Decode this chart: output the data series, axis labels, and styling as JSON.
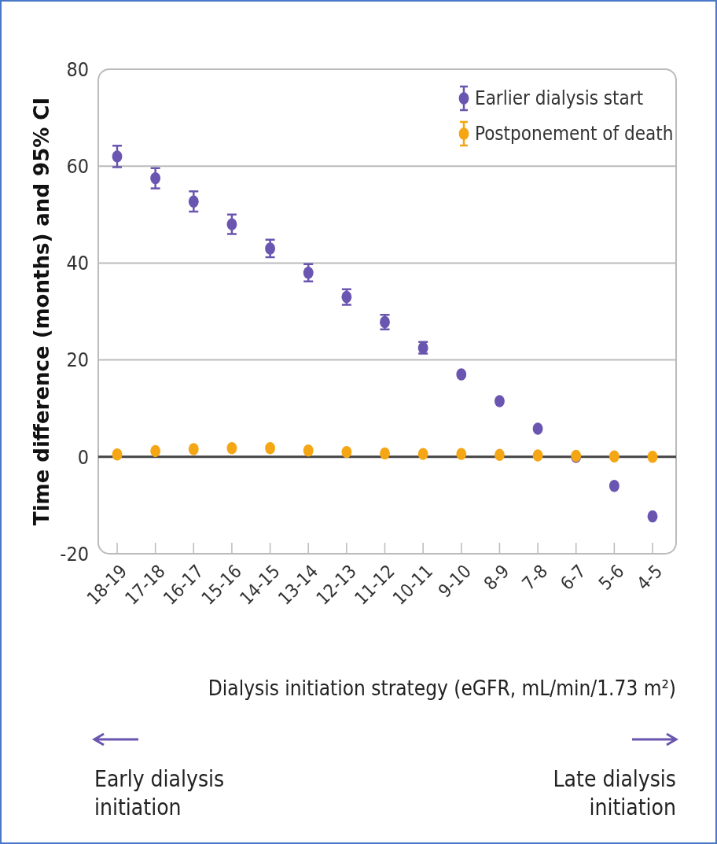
{
  "chart_data": {
    "type": "scatter",
    "xlabel": "Dialysis initiation strategy (eGFR, mL/min/1.73 m²)",
    "ylabel": "Time difference (months) and 95% CI",
    "categories": [
      "18-19",
      "17-18",
      "16-17",
      "15-16",
      "14-15",
      "13-14",
      "12-13",
      "11-12",
      "10-11",
      "9-10",
      "8-9",
      "7-8",
      "6-7",
      "5-6",
      "4-5"
    ],
    "series": [
      {
        "name": "Earlier dialysis start",
        "color": "#6a55b0",
        "values": [
          62,
          57.5,
          52.7,
          48,
          43,
          38,
          33,
          27.8,
          22.5,
          17,
          11.5,
          5.8,
          0,
          -6,
          -12.3
        ],
        "errors": [
          2.2,
          2.1,
          2.1,
          2,
          1.8,
          1.8,
          1.6,
          1.5,
          1.2,
          null,
          null,
          null,
          null,
          null,
          null
        ]
      },
      {
        "name": "Postponement of death",
        "color": "#f5a614",
        "values": [
          0.5,
          1.2,
          1.6,
          1.8,
          1.8,
          1.3,
          1,
          0.7,
          0.6,
          0.6,
          0.4,
          0.3,
          0.2,
          0.1,
          0
        ]
      }
    ],
    "ylim": [
      -20,
      80
    ],
    "yticks": [
      -20,
      0,
      20,
      40,
      60,
      80
    ],
    "grid": "y",
    "legend": "top right",
    "marker": "circle",
    "ref_lines": [
      {
        "axis": "y",
        "value": 0,
        "color": "#444444"
      }
    ],
    "annotations": [
      "Early dialysis initiation",
      "Late dialysis initiation"
    ]
  }
}
